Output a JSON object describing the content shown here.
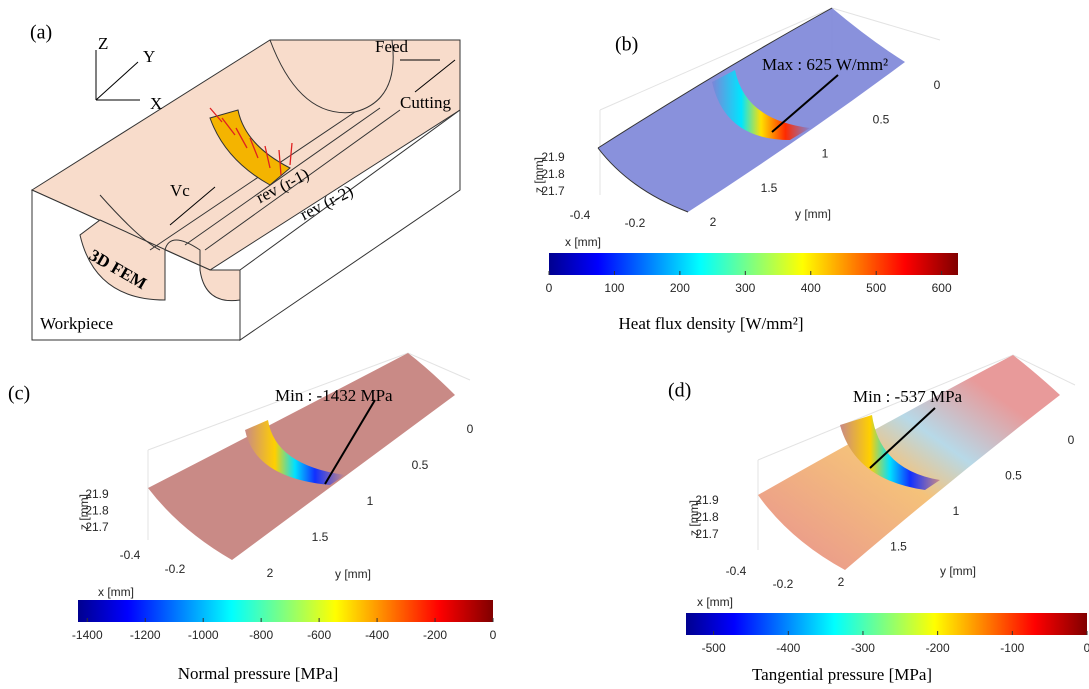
{
  "panels": {
    "a": {
      "label": "(a)",
      "axes": [
        "Z",
        "Y",
        "X"
      ],
      "feed": "Feed",
      "cutting": "Cutting",
      "vc": "Vc",
      "rev1": "rev (r-1)",
      "rev2": "rev (r-2)",
      "fem": "3D FEM",
      "workpiece": "Workpiece"
    },
    "b": {
      "label": "(b)",
      "annotation": "Max : 625 W/mm²",
      "z_label": "z [mm]",
      "zticks": [
        21.9,
        21.8,
        21.7
      ],
      "x_label": "x [mm]",
      "xticks": [
        -0.4,
        -0.2
      ],
      "y_label": "y [mm]",
      "yticks": [
        0,
        0.5,
        1,
        1.5,
        2
      ],
      "colorbar": {
        "lim": [
          0,
          625
        ],
        "ticks": [
          0,
          100,
          200,
          300,
          400,
          500,
          600
        ],
        "colormap": "jet"
      },
      "caption": "Heat flux density [W/mm²]"
    },
    "c": {
      "label": "(c)",
      "annotation": "Min : -1432 MPa",
      "z_label": "z [mm]",
      "zticks": [
        21.9,
        21.8,
        21.7
      ],
      "x_label": "x [mm]",
      "xticks": [
        -0.4,
        -0.2
      ],
      "y_label": "y [mm]",
      "yticks": [
        0,
        0.5,
        1,
        1.5,
        2
      ],
      "colorbar": {
        "lim": [
          -1432,
          0
        ],
        "ticks": [
          -1400,
          -1200,
          -1000,
          -800,
          -600,
          -400,
          -200,
          0
        ],
        "colormap": "jet"
      },
      "caption": "Normal pressure [MPa]"
    },
    "d": {
      "label": "(d)",
      "annotation": "Min : -537 MPa",
      "z_label": "z [mm]",
      "zticks": [
        21.9,
        21.8,
        21.7
      ],
      "x_label": "x [mm]",
      "xticks": [
        -0.4,
        -0.2
      ],
      "y_label": "y [mm]",
      "yticks": [
        0,
        0.5,
        1,
        1.5,
        2
      ],
      "colorbar": {
        "lim": [
          -537,
          0
        ],
        "ticks": [
          -500,
          -400,
          -300,
          -200,
          -100,
          0
        ],
        "colormap": "jet"
      },
      "caption": "Tangential pressure [MPa]"
    }
  }
}
